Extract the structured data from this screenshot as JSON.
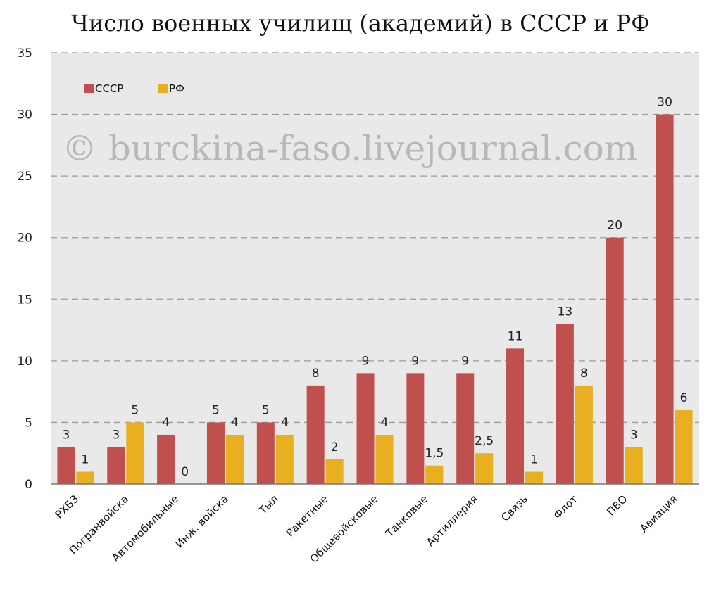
{
  "title": "Число военных училищ (академий) в СССР и РФ",
  "watermark": "© burckina-faso.livejournal.com",
  "chart_data": {
    "type": "bar",
    "title": "Число военных училищ (академий) в СССР и РФ",
    "categories": [
      "РХБЗ",
      "Погранвойска",
      "Автомобильные",
      "Инж. войска",
      "Тыл",
      "Ракетные",
      "Общевойсковые",
      "Танковые",
      "Артиллерия",
      "Связь",
      "Флот",
      "ПВО",
      "Авиация"
    ],
    "series": [
      {
        "name": "СССР",
        "color": "#c0504d",
        "values": [
          3,
          3,
          4,
          5,
          5,
          8,
          9,
          9,
          9,
          11,
          13,
          20,
          30
        ],
        "labels": [
          "3",
          "3",
          "4",
          "5",
          "5",
          "8",
          "9",
          "9",
          "9",
          "11",
          "13",
          "20",
          "30"
        ]
      },
      {
        "name": "РФ",
        "color": "#e8b020",
        "values": [
          1,
          5,
          0,
          4,
          4,
          2,
          4,
          1.5,
          2.5,
          1,
          8,
          3,
          6
        ],
        "labels": [
          "1",
          "5",
          "0",
          "4",
          "4",
          "2",
          "4",
          "1,5",
          "2,5",
          "1",
          "8",
          "3",
          "6"
        ]
      }
    ],
    "ylim": [
      0,
      35
    ],
    "yticks": [
      0,
      5,
      10,
      15,
      20,
      25,
      30,
      35
    ],
    "grid": true,
    "legend": "top-left",
    "xlabel": "",
    "ylabel": ""
  }
}
